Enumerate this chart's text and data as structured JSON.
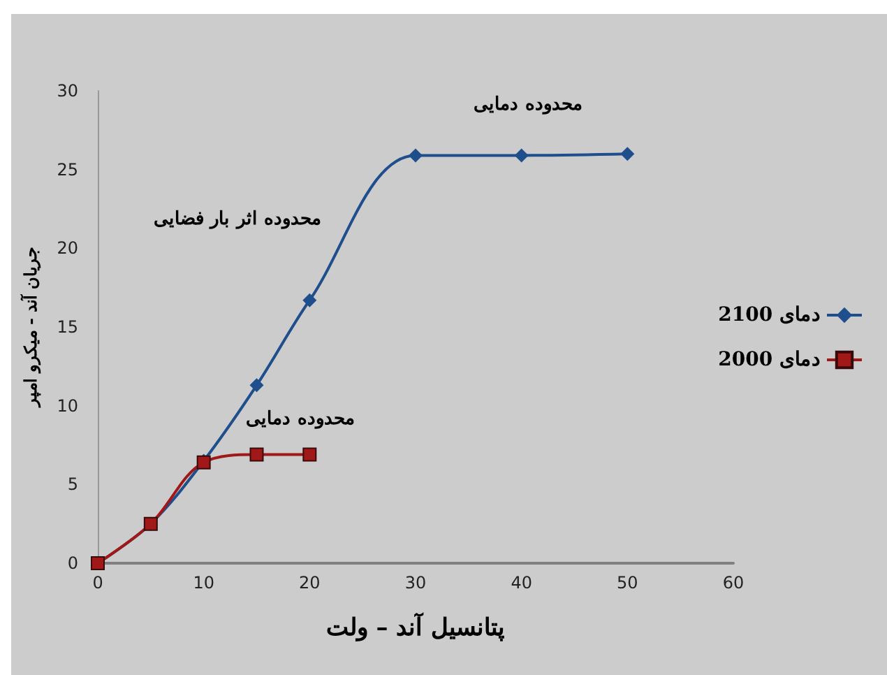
{
  "chart_data": {
    "type": "line",
    "xlabel": "پتانسیل آند – ولت",
    "ylabel": "جریان آند - میکرو امپر",
    "x": [
      0,
      5,
      10,
      15,
      20,
      30,
      40,
      50
    ],
    "series": [
      {
        "name": "دمای 2100",
        "color": "#1f4e8c",
        "marker": "diamond",
        "values": [
          0,
          2.5,
          6.5,
          11.3,
          16.7,
          25.9,
          25.9,
          26
        ]
      },
      {
        "name": "دمای 2000",
        "color": "#a01818",
        "marker": "square",
        "x": [
          0,
          5,
          10,
          15,
          20
        ],
        "values": [
          0,
          2.5,
          6.4,
          6.9,
          6.9
        ]
      }
    ],
    "xlim": [
      0,
      60
    ],
    "xticks": [
      0,
      10,
      20,
      30,
      40,
      50,
      60
    ],
    "ylim": [
      0,
      30
    ],
    "yticks": [
      0,
      5,
      10,
      15,
      20,
      25,
      30
    ],
    "annotations": [
      "محدوده دمایی",
      "محدوده اثر بار فضایی",
      "محدوده دمایی"
    ],
    "grid": false,
    "legend": "right",
    "line_style": "solid"
  }
}
